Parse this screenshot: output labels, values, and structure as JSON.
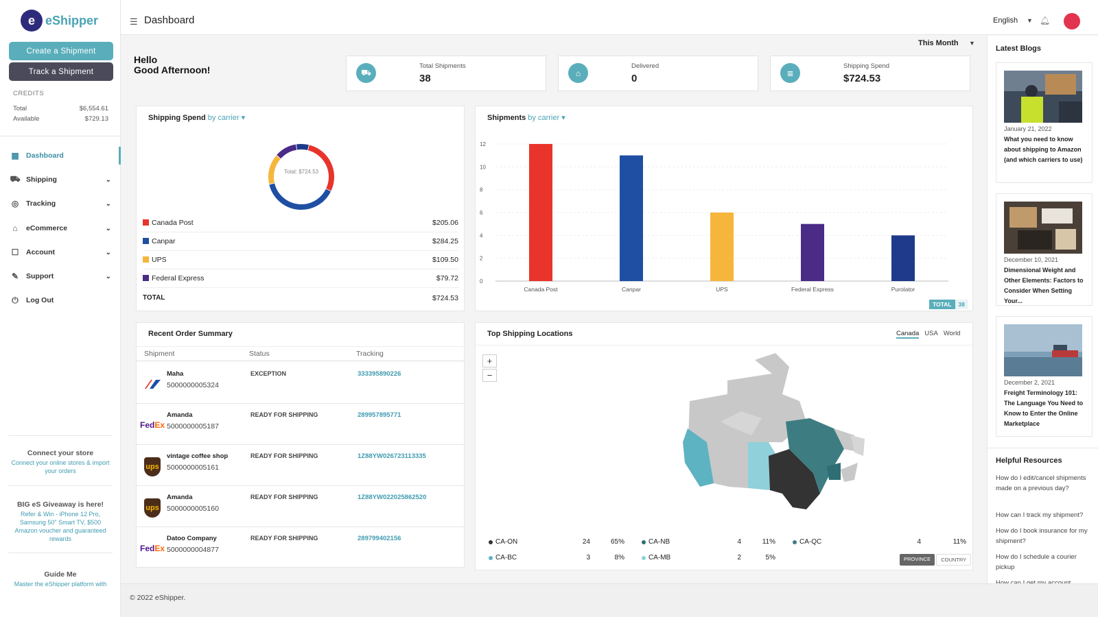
{
  "brand": {
    "logo_mark": "e",
    "name": "eShipper"
  },
  "sidebar": {
    "create_label": "Create a Shipment",
    "track_label": "Track a Shipment",
    "credits": {
      "heading": "CREDITS",
      "total_label": "Total",
      "total_value": "$6,554.61",
      "available_label": "Available",
      "available_value": "$729.13"
    },
    "nav": [
      {
        "label": "Dashboard",
        "icon": "dashboard-icon"
      },
      {
        "label": "Shipping",
        "icon": "truck-icon"
      },
      {
        "label": "Tracking",
        "icon": "compass-icon"
      },
      {
        "label": "eCommerce",
        "icon": "store-icon"
      },
      {
        "label": "Account",
        "icon": "account-icon"
      },
      {
        "label": "Support",
        "icon": "wrench-icon"
      },
      {
        "label": "Log Out",
        "icon": "power-icon"
      }
    ],
    "promos": [
      {
        "title": "Connect your store",
        "text": "Connect your online stores & import your orders"
      },
      {
        "title": "BIG eS Giveaway is here!",
        "text": "Refer & Win - iPhone 12 Pro, Samsung 50\" Smart TV, $500 Amazon voucher and guaranteed rewards"
      },
      {
        "title": "Guide Me",
        "text": "Master the eShipper platform with these helpful"
      }
    ]
  },
  "header": {
    "title": "Dashboard",
    "language": "English"
  },
  "greeting": {
    "line1": "Hello",
    "line2": "Good Afternoon!"
  },
  "period": "This Month",
  "stats": [
    {
      "label": "Total Shipments",
      "value": "38",
      "icon": "truck-icon"
    },
    {
      "label": "Delivered",
      "value": "0",
      "icon": "store-icon"
    },
    {
      "label": "Shipping Spend",
      "value": "$724.53",
      "icon": "receipt-icon"
    }
  ],
  "spend_card": {
    "title": "Shipping Spend",
    "subtitle": "by carrier",
    "donut_label": "Total: $724.53",
    "rows": [
      {
        "carrier": "Canada Post",
        "amount": "$205.06",
        "color": "#e8342b"
      },
      {
        "carrier": "Canpar",
        "amount": "$284.25",
        "color": "#1e4fa3"
      },
      {
        "carrier": "UPS",
        "amount": "$109.50",
        "color": "#f6b63c"
      },
      {
        "carrier": "Federal Express",
        "amount": "$79.72",
        "color": "#4a2b86"
      }
    ],
    "total_label": "TOTAL",
    "total_value": "$724.53"
  },
  "chart_data": {
    "type": "pie",
    "labels": [
      "Canada Post",
      "Canpar",
      "UPS",
      "Federal Express",
      "Purolator"
    ],
    "values": [
      205.06,
      284.25,
      109.5,
      79.72,
      46.0
    ],
    "colors": [
      "#e8342b",
      "#1e4fa3",
      "#f6b63c",
      "#4a2b86",
      "#1f3a8a"
    ]
  },
  "shipments_chart": {
    "title": "Shipments",
    "subtitle": "by carrier",
    "categories": [
      "Canada Post",
      "Canpar",
      "UPS",
      "Federal Express",
      "Purolator"
    ],
    "values": [
      12,
      11,
      6,
      5,
      4
    ],
    "colors": [
      "#e8342b",
      "#1e4fa3",
      "#f6b63c",
      "#4a2b86",
      "#1f3a8a"
    ],
    "yticks": [
      "0",
      "2",
      "4",
      "6",
      "8",
      "10",
      "12"
    ],
    "ymax": 12,
    "total_label": "TOTAL",
    "total_value": "38"
  },
  "orders": {
    "title": "Recent Order Summary",
    "columns": [
      "Shipment",
      "Status",
      "Tracking"
    ],
    "rows": [
      {
        "carrier": "canpar",
        "name": "Maha",
        "number": "5000000005324",
        "status": "EXCEPTION",
        "tracking": "333395890226"
      },
      {
        "carrier": "fedex",
        "name": "Amanda",
        "number": "5000000005187",
        "status": "READY FOR SHIPPING",
        "tracking": "289957895771"
      },
      {
        "carrier": "ups",
        "name": "vintage coffee shop",
        "number": "5000000005161",
        "status": "READY FOR SHIPPING",
        "tracking": "1Z88YW026723113335"
      },
      {
        "carrier": "ups",
        "name": "Amanda",
        "number": "5000000005160",
        "status": "READY FOR SHIPPING",
        "tracking": "1Z88YW022025862520"
      },
      {
        "carrier": "fedex",
        "name": "Datoo Company",
        "number": "5000000004877",
        "status": "READY FOR SHIPPING",
        "tracking": "289799402156"
      }
    ]
  },
  "locations": {
    "title": "Top Shipping Locations",
    "tabs": [
      "Canada",
      "USA",
      "World"
    ],
    "zoom_in": "+",
    "zoom_out": "−",
    "items": [
      {
        "code": "CA-ON",
        "count": "24",
        "pct": "65%",
        "color": "#333333"
      },
      {
        "code": "CA-NB",
        "count": "4",
        "pct": "11%",
        "color": "#2e6e74"
      },
      {
        "code": "CA-QC",
        "count": "4",
        "pct": "11%",
        "color": "#3d7d82"
      },
      {
        "code": "CA-BC",
        "count": "3",
        "pct": "8%",
        "color": "#5db3c2"
      },
      {
        "code": "CA-MB",
        "count": "2",
        "pct": "5%",
        "color": "#8fd0da"
      }
    ],
    "toggle_on": "PROVINCE",
    "toggle_off": "COUNTRY"
  },
  "blogs": {
    "heading": "Latest Blogs",
    "items": [
      {
        "date": "January 21, 2022",
        "title": "What you need to know about shipping to Amazon (and which carriers to use)"
      },
      {
        "date": "December 10, 2021",
        "title": "Dimensional Weight and Other Elements: Factors to Consider When Setting Your..."
      },
      {
        "date": "December 2, 2021",
        "title": "Freight Terminology 101: The Language You Need to Know to Enter the Online Marketplace"
      }
    ]
  },
  "resources": {
    "heading": "Helpful Resources",
    "items": [
      "How do I edit/cancel shipments made on a previous day?",
      "How can I track my shipment?",
      "How do I book insurance for my shipment?",
      "How do I schedule a courier pickup",
      "How can I get my account"
    ]
  },
  "footer": {
    "copyright": "© 2022 eShipper."
  }
}
